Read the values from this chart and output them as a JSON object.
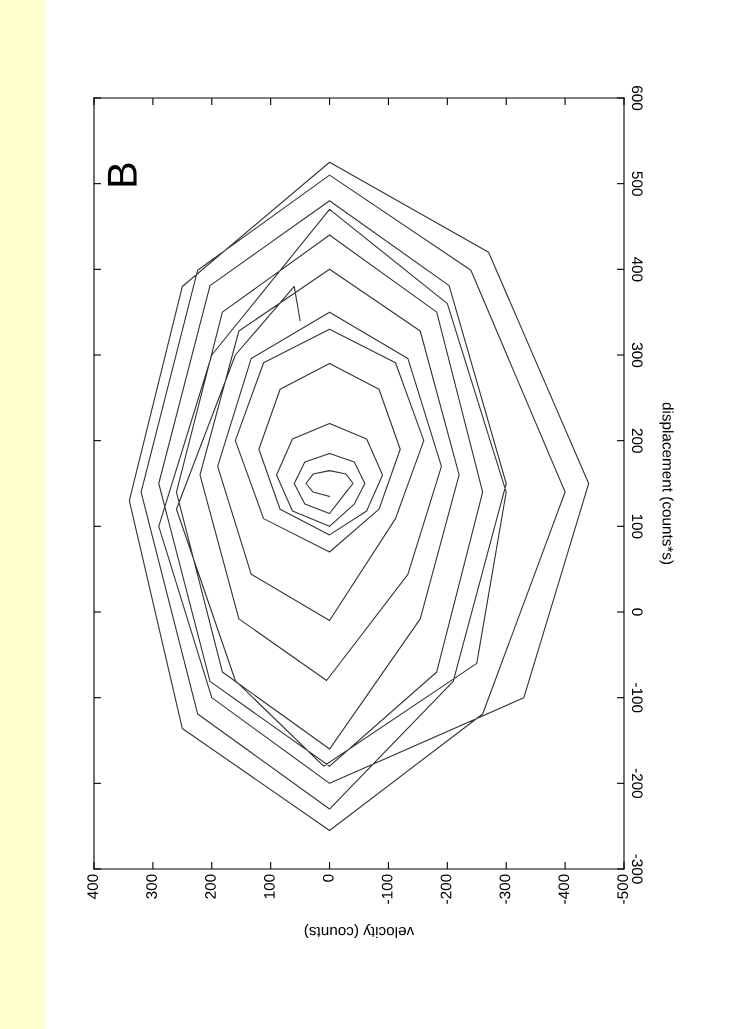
{
  "chart_data": {
    "type": "line",
    "xlabel": "velocity (counts)",
    "ylabel": "displacement (counts*s)",
    "annotations": [
      "B"
    ],
    "xlim": [
      400,
      -500
    ],
    "xticks": [
      400,
      300,
      200,
      100,
      0,
      -100,
      -200,
      -300,
      -400,
      -500
    ],
    "ylim": [
      -300,
      600
    ],
    "yticks": [
      -300,
      -200,
      -100,
      0,
      100,
      200,
      300,
      400,
      500,
      600
    ],
    "series": [
      {
        "color": "#333333",
        "x": [
          0,
          28,
          40,
          28,
          0,
          -28,
          -40,
          -28,
          0,
          42,
          60,
          42,
          0,
          -42,
          -60,
          -42,
          0,
          63,
          90,
          63,
          0,
          -63,
          -90,
          -63,
          0,
          84,
          120,
          84,
          0,
          -84,
          -120,
          -84,
          0,
          112,
          160,
          112,
          0,
          -112,
          -160,
          -112,
          0,
          133,
          190,
          133,
          0,
          -133,
          -190,
          -133,
          5,
          154,
          220,
          154,
          0,
          -154,
          -220,
          -154,
          0,
          182,
          260,
          182,
          0,
          -182,
          -260,
          -182,
          0,
          203,
          290,
          203,
          0,
          -203,
          -300,
          -210,
          0,
          224,
          320,
          224,
          0,
          -240,
          -400,
          -260,
          0,
          250,
          340,
          250,
          0,
          -270,
          -440,
          -330,
          0,
          200,
          290,
          200,
          0,
          -200,
          -300,
          -250,
          10,
          160,
          260,
          160,
          60,
          50
        ],
        "values": [
          135,
          140,
          150,
          161,
          165,
          161,
          150,
          140,
          115,
          126,
          150,
          175,
          185,
          175,
          150,
          126,
          100,
          118,
          160,
          202,
          220,
          202,
          160,
          118,
          90,
          120,
          190,
          260,
          290,
          260,
          190,
          120,
          70,
          109,
          200,
          291,
          330,
          291,
          200,
          109,
          -10,
          44,
          170,
          296,
          350,
          296,
          170,
          44,
          -80,
          -8,
          160,
          328,
          400,
          328,
          160,
          -8,
          -160,
          -70,
          140,
          350,
          440,
          350,
          140,
          -70,
          -180,
          -81,
          150,
          381,
          480,
          381,
          150,
          -81,
          -230,
          -119,
          140,
          399,
          510,
          399,
          140,
          -119,
          -255,
          -136,
          130,
          380,
          525,
          420,
          150,
          -100,
          -200,
          -100,
          100,
          300,
          470,
          360,
          140,
          -60,
          -180,
          -80,
          120,
          300,
          380,
          340
        ]
      }
    ]
  }
}
